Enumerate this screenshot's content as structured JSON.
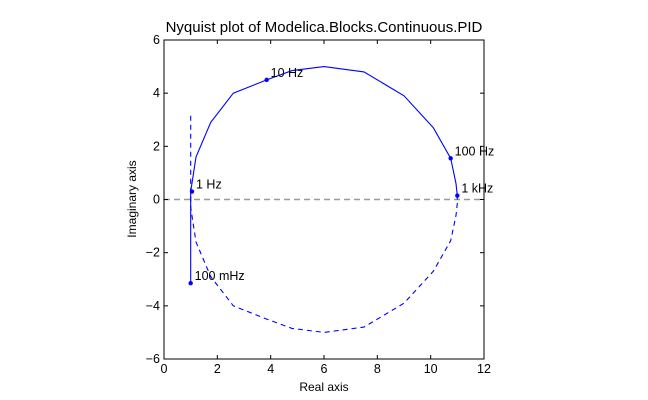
{
  "chart_data": {
    "type": "line",
    "title": "Nyquist plot of Modelica.Blocks.Continuous.PID",
    "xlabel": "Real axis",
    "ylabel": "Imaginary axis",
    "xlim": [
      0,
      12
    ],
    "ylim": [
      -6,
      6
    ],
    "xticks": [
      "0",
      "2",
      "4",
      "6",
      "8",
      "10",
      "12"
    ],
    "yticks": [
      "−6",
      "−4",
      "−2",
      "0",
      "2",
      "4",
      "6"
    ],
    "grid": false,
    "colors": {
      "curve": "#0000ff",
      "zero_line": "#999999",
      "frame": "#000000"
    },
    "series": [
      {
        "style": "solid",
        "points": [
          [
            1.0,
            -3.15
          ],
          [
            1.0,
            -1.5
          ],
          [
            1.0,
            0.0
          ],
          [
            1.0,
            0.3
          ],
          [
            1.2,
            1.6
          ],
          [
            1.75,
            2.9
          ],
          [
            2.6,
            4.0
          ],
          [
            3.85,
            4.5
          ],
          [
            4.8,
            4.85
          ],
          [
            6.0,
            5.0
          ],
          [
            7.5,
            4.8
          ],
          [
            9.0,
            3.9
          ],
          [
            10.1,
            2.7
          ],
          [
            10.75,
            1.55
          ],
          [
            10.95,
            0.6
          ],
          [
            11.0,
            0.15
          ],
          [
            11.0,
            0.0
          ]
        ]
      },
      {
        "style": "dashed",
        "points": [
          [
            1.0,
            3.15
          ],
          [
            1.0,
            1.5
          ],
          [
            1.0,
            0.0
          ],
          [
            1.0,
            -0.3
          ],
          [
            1.2,
            -1.6
          ],
          [
            1.75,
            -2.9
          ],
          [
            2.6,
            -4.0
          ],
          [
            3.85,
            -4.5
          ],
          [
            4.8,
            -4.85
          ],
          [
            6.0,
            -5.0
          ],
          [
            7.5,
            -4.8
          ],
          [
            9.0,
            -3.9
          ],
          [
            10.1,
            -2.7
          ],
          [
            10.75,
            -1.55
          ],
          [
            10.95,
            -0.6
          ],
          [
            11.0,
            -0.15
          ],
          [
            11.0,
            0.0
          ]
        ]
      }
    ],
    "markers": [
      {
        "label": "100 mHz",
        "x": 1.0,
        "y": -3.15
      },
      {
        "label": "1 Hz",
        "x": 1.05,
        "y": 0.3
      },
      {
        "label": "10 Hz",
        "x": 3.85,
        "y": 4.5
      },
      {
        "label": "100 Hz",
        "x": 10.75,
        "y": 1.55
      },
      {
        "label": "1 kHz",
        "x": 11.0,
        "y": 0.15
      }
    ]
  }
}
